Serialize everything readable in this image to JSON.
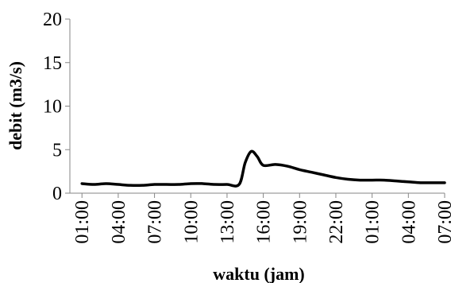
{
  "chart_data": {
    "type": "line",
    "title": "",
    "xlabel": "waktu (jam)",
    "ylabel": "debit (m3/s)",
    "ylim": [
      0,
      20
    ],
    "yticks": [
      0,
      5,
      10,
      15,
      20
    ],
    "ytick_labels": [
      "0",
      "5",
      "10",
      "15",
      "20"
    ],
    "xlim": [
      0,
      31
    ],
    "xticks": [
      1,
      4,
      7,
      10,
      13,
      16,
      19,
      22,
      25,
      28,
      31
    ],
    "xtick_labels": [
      "01:00",
      "04:00",
      "07:00",
      "10:00",
      "13:00",
      "16:00",
      "19:00",
      "22:00",
      "01:00",
      "04:00",
      "07:00"
    ],
    "grid": false,
    "legend": "none",
    "series": [
      {
        "color": "#000000",
        "x": [
          1,
          2,
          3,
          4,
          5,
          6,
          7,
          8,
          9,
          10,
          11,
          12,
          13,
          14,
          14.5,
          15,
          15.5,
          16,
          17,
          18,
          19,
          20,
          21,
          22,
          23,
          24,
          25,
          26,
          27,
          28,
          29,
          30,
          31
        ],
        "y": [
          1.1,
          1.0,
          1.1,
          1.0,
          0.9,
          0.9,
          1.0,
          1.0,
          1.0,
          1.1,
          1.1,
          1.0,
          1.0,
          1.0,
          3.5,
          4.8,
          4.2,
          3.2,
          3.3,
          3.1,
          2.7,
          2.4,
          2.1,
          1.8,
          1.6,
          1.5,
          1.5,
          1.5,
          1.4,
          1.3,
          1.2,
          1.2,
          1.2
        ]
      }
    ]
  }
}
